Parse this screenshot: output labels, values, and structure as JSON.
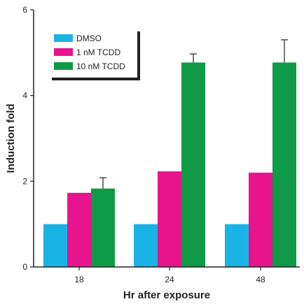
{
  "chart_data": {
    "type": "bar",
    "xlabel": "Hr after exposure",
    "ylabel": "Induction fold",
    "categories": [
      "18",
      "24",
      "48"
    ],
    "ylim": [
      0,
      6
    ],
    "yticks": [
      "0",
      "2",
      "4",
      "6"
    ],
    "grid": false,
    "legend_position": "top-left",
    "series": [
      {
        "name": "DMSO",
        "color": "#1ab3e6",
        "values": [
          1.0,
          1.0,
          1.0
        ],
        "errors": [
          null,
          null,
          null
        ]
      },
      {
        "name": "1 nM TCDD",
        "color": "#e8148c",
        "values": [
          1.73,
          2.23,
          2.2
        ],
        "errors": [
          null,
          null,
          null
        ]
      },
      {
        "name": "10 nM TCDD",
        "color": "#0e9a47",
        "values": [
          1.83,
          4.77,
          4.77
        ],
        "errors": [
          0.25,
          0.2,
          0.53
        ]
      }
    ]
  }
}
